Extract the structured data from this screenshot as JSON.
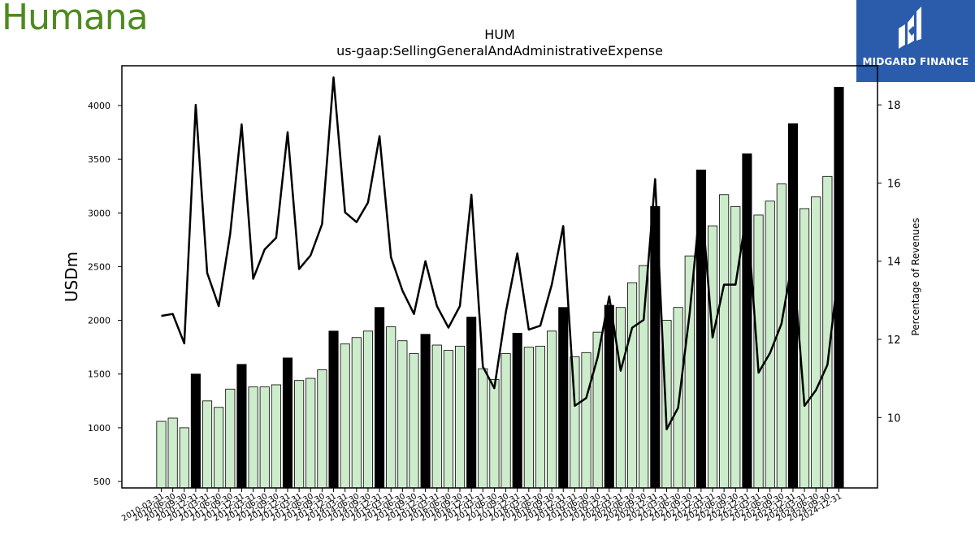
{
  "brand": {
    "name": "Humana"
  },
  "badge": {
    "text": "MIDGARD FINANCE",
    "color": "#2b5bab",
    "icon": "midgard-logo-icon"
  },
  "chart_data": {
    "type": "bar",
    "title": "HUM",
    "subtitle": "us-gaap:SellingGeneralAndAdministrativeExpense",
    "ylabel": "USDm",
    "y2label": "Percentage of Revenues",
    "ylim": [
      440,
      4370
    ],
    "y2lim": [
      8.2,
      19.0
    ],
    "yticks": [
      500,
      1000,
      1500,
      2000,
      2500,
      3000,
      3500,
      4000
    ],
    "y2ticks": [
      10,
      12,
      14,
      16,
      18
    ],
    "colors": {
      "quarter_bar": "#cdeccb",
      "annual_bar": "#000000",
      "line": "#000000"
    },
    "categories": [
      "2010-03-31",
      "2010-06-30",
      "2010-09-30",
      "2010-12-31",
      "2011-03-31",
      "2011-06-30",
      "2011-09-30",
      "2011-12-31",
      "2012-03-31",
      "2012-06-30",
      "2012-09-30",
      "2012-12-31",
      "2013-03-31",
      "2013-06-30",
      "2013-09-30",
      "2013-12-31",
      "2014-03-31",
      "2014-06-30",
      "2014-09-30",
      "2014-12-31",
      "2015-03-31",
      "2015-06-30",
      "2015-09-30",
      "2015-12-31",
      "2016-03-31",
      "2016-06-30",
      "2016-09-30",
      "2016-12-31",
      "2017-03-31",
      "2017-06-30",
      "2017-09-30",
      "2017-12-31",
      "2018-03-31",
      "2018-06-30",
      "2018-09-30",
      "2018-12-31",
      "2019-03-31",
      "2019-06-30",
      "2019-09-30",
      "2019-12-31",
      "2020-03-31",
      "2020-06-30",
      "2020-09-30",
      "2020-12-31",
      "2021-03-31",
      "2021-06-30",
      "2021-09-30",
      "2021-12-31",
      "2022-03-31",
      "2022-06-30",
      "2022-09-30",
      "2022-12-31",
      "2023-03-31",
      "2023-06-30",
      "2023-09-30",
      "2023-12-31",
      "2024-03-31",
      "2024-06-30",
      "2024-09-30",
      "2024-12-31"
    ],
    "series": [
      {
        "name": "",
        "kind": "bar",
        "values": [
          1060,
          1090,
          1000,
          1500,
          1250,
          1190,
          1360,
          1590,
          1380,
          1380,
          1400,
          1650,
          1440,
          1460,
          1540,
          1900,
          1780,
          1840,
          1900,
          2120,
          1940,
          1810,
          1690,
          1870,
          1770,
          1720,
          1760,
          2030,
          1550,
          1450,
          1690,
          1880,
          1750,
          1760,
          1900,
          2120,
          1660,
          1700,
          1890,
          2140,
          2120,
          2350,
          2510,
          3060,
          2000,
          2120,
          2600,
          3400,
          2880,
          3170,
          3060,
          3550,
          2980,
          3110,
          3270,
          3830,
          3040,
          3150,
          3340,
          4170
        ]
      },
      {
        "name": "",
        "kind": "line",
        "values": [
          12.6,
          12.65,
          11.9,
          18.0,
          13.7,
          12.85,
          14.7,
          17.5,
          13.55,
          14.3,
          14.6,
          17.3,
          13.8,
          14.15,
          14.95,
          18.7,
          15.25,
          15.0,
          15.5,
          17.2,
          14.1,
          13.25,
          12.65,
          14.0,
          12.85,
          12.3,
          12.85,
          15.7,
          11.3,
          10.75,
          12.7,
          14.2,
          12.25,
          12.35,
          13.4,
          14.9,
          10.3,
          10.5,
          11.55,
          13.1,
          11.2,
          12.3,
          12.5,
          16.1,
          9.7,
          10.25,
          12.65,
          15.7,
          12.05,
          13.4,
          13.4,
          15.3,
          11.15,
          11.65,
          12.4,
          14.1,
          10.3,
          10.7,
          11.35,
          13.85
        ]
      }
    ],
    "annual_indices": [
      3,
      7,
      11,
      15,
      19,
      23,
      27,
      31,
      35,
      39,
      43,
      47,
      51,
      55,
      59
    ],
    "legend": "none",
    "grid": false
  }
}
